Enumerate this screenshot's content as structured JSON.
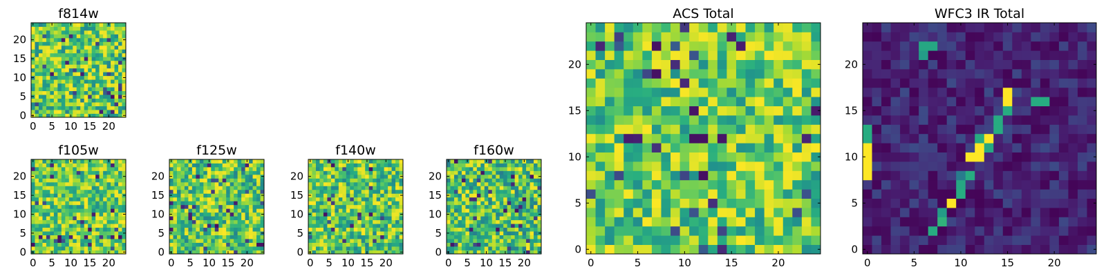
{
  "figure": {
    "description_colormap": "viridis",
    "colors": {
      "low": "#440154",
      "mid": "#21918c",
      "high": "#fde725",
      "frame": "#000000"
    }
  },
  "chart_data": [
    {
      "id": "f814w",
      "type": "heatmap",
      "title": "f814w",
      "grid_size": 25,
      "xlim": [
        -0.5,
        24.5
      ],
      "ylim": [
        -0.5,
        24.5
      ],
      "xticks": [
        "0",
        "5",
        "10",
        "15",
        "20"
      ],
      "yticks": [
        "0",
        "5",
        "10",
        "15",
        "20"
      ],
      "value_range": [
        0,
        1
      ],
      "pattern": "uniform-noise",
      "mean_level": 0.72,
      "spread": 0.28
    },
    {
      "id": "f105w",
      "type": "heatmap",
      "title": "f105w",
      "grid_size": 25,
      "xlim": [
        -0.5,
        24.5
      ],
      "ylim": [
        -0.5,
        24.5
      ],
      "xticks": [
        "0",
        "5",
        "10",
        "15",
        "20"
      ],
      "yticks": [
        "0",
        "5",
        "10",
        "15",
        "20"
      ],
      "value_range": [
        0,
        1
      ],
      "pattern": "uniform-noise",
      "mean_level": 0.74,
      "spread": 0.25
    },
    {
      "id": "f125w",
      "type": "heatmap",
      "title": "f125w",
      "grid_size": 25,
      "xlim": [
        -0.5,
        24.5
      ],
      "ylim": [
        -0.5,
        24.5
      ],
      "xticks": [
        "0",
        "5",
        "10",
        "15",
        "20"
      ],
      "yticks": [
        "0",
        "5",
        "10",
        "15",
        "20"
      ],
      "value_range": [
        0,
        1
      ],
      "pattern": "uniform-noise",
      "mean_level": 0.72,
      "spread": 0.27
    },
    {
      "id": "f140w",
      "type": "heatmap",
      "title": "f140w",
      "grid_size": 25,
      "xlim": [
        -0.5,
        24.5
      ],
      "ylim": [
        -0.5,
        24.5
      ],
      "xticks": [
        "0",
        "5",
        "10",
        "15",
        "20"
      ],
      "yticks": [
        "0",
        "5",
        "10",
        "15",
        "20"
      ],
      "value_range": [
        0,
        1
      ],
      "pattern": "uniform-noise",
      "mean_level": 0.73,
      "spread": 0.27
    },
    {
      "id": "f160w",
      "type": "heatmap",
      "title": "f160w",
      "grid_size": 25,
      "xlim": [
        -0.5,
        24.5
      ],
      "ylim": [
        -0.5,
        24.5
      ],
      "xticks": [
        "0",
        "5",
        "10",
        "15",
        "20"
      ],
      "yticks": [
        "0",
        "5",
        "10",
        "15",
        "20"
      ],
      "value_range": [
        0,
        1
      ],
      "pattern": "uniform-noise",
      "mean_level": 0.7,
      "spread": 0.28
    },
    {
      "id": "acs_total",
      "type": "heatmap",
      "title": "ACS Total",
      "grid_size": 25,
      "xlim": [
        -0.5,
        24.5
      ],
      "ylim": [
        -0.5,
        24.5
      ],
      "xticks": [
        "0",
        "5",
        "10",
        "15",
        "20"
      ],
      "yticks": [
        "0",
        "5",
        "10",
        "15",
        "20"
      ],
      "value_range": [
        0,
        1
      ],
      "pattern": "uniform-noise",
      "mean_level": 0.74,
      "spread": 0.25
    },
    {
      "id": "wfc3_ir_total",
      "type": "heatmap",
      "title": "WFC3 IR Total",
      "grid_size": 25,
      "xlim": [
        -0.5,
        24.5
      ],
      "ylim": [
        -0.5,
        24.5
      ],
      "xticks": [
        "0",
        "5",
        "10",
        "15",
        "20"
      ],
      "yticks": [
        "0",
        "5",
        "10",
        "15",
        "20"
      ],
      "value_range": [
        0,
        1
      ],
      "pattern": "dark-background-with-bright-streak",
      "background_level": 0.12,
      "bright_cells": [
        [
          0,
          8,
          1.0
        ],
        [
          0,
          9,
          1.0
        ],
        [
          0,
          10,
          1.0
        ],
        [
          0,
          11,
          1.0
        ],
        [
          0,
          12,
          0.62
        ],
        [
          0,
          13,
          0.62
        ],
        [
          7,
          2,
          0.62
        ],
        [
          8,
          3,
          0.65
        ],
        [
          8,
          4,
          0.55
        ],
        [
          9,
          5,
          1.0
        ],
        [
          10,
          6,
          0.62
        ],
        [
          10,
          7,
          0.6
        ],
        [
          11,
          8,
          0.62
        ],
        [
          11,
          10,
          1.0
        ],
        [
          12,
          10,
          1.0
        ],
        [
          12,
          11,
          1.0
        ],
        [
          12,
          12,
          0.62
        ],
        [
          13,
          11,
          0.6
        ],
        [
          13,
          12,
          1.0
        ],
        [
          14,
          13,
          0.62
        ],
        [
          14,
          14,
          0.62
        ],
        [
          15,
          15,
          0.62
        ],
        [
          15,
          16,
          1.0
        ],
        [
          15,
          17,
          1.0
        ],
        [
          18,
          16,
          0.62
        ],
        [
          19,
          16,
          0.62
        ],
        [
          6,
          22,
          0.6
        ],
        [
          7,
          22,
          0.6
        ],
        [
          6,
          21,
          0.55
        ],
        [
          10,
          8,
          0.42
        ]
      ]
    }
  ]
}
